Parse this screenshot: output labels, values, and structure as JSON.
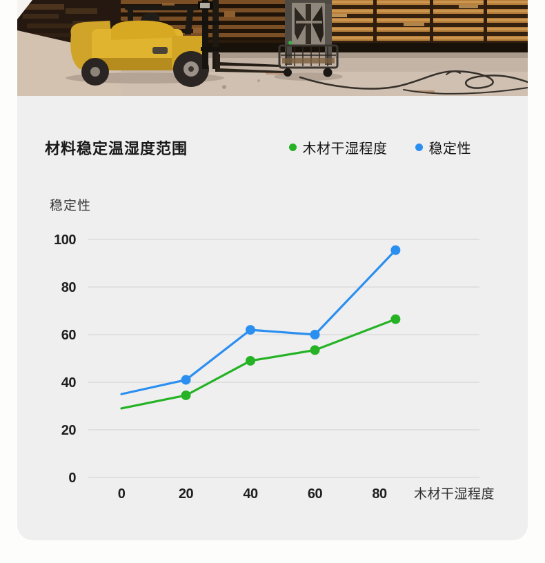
{
  "photo": {
    "description": "warehouse interior with a yellow forklift, a metal fan cart and tall stacks of wooden pallets, cables lying on the concrete floor",
    "forklift_color": "#d9ab25",
    "pallet_color": "#b9813c"
  },
  "header": {
    "title": "材料稳定温湿度范围"
  },
  "legend": {
    "items": [
      {
        "label": "木材干湿程度",
        "color": "#25b325"
      },
      {
        "label": "稳定性",
        "color": "#2b8ff0"
      }
    ]
  },
  "chart_data": {
    "type": "line",
    "title": "材料稳定温湿度范围",
    "y_axis_label": "稳定性",
    "x_axis_label": "木材干湿程度",
    "x_ticks": [
      0,
      20,
      40,
      60,
      80
    ],
    "y_ticks": [
      0,
      20,
      40,
      60,
      80,
      100
    ],
    "xlim": [
      0,
      110
    ],
    "ylim": [
      0,
      100
    ],
    "grid": "horizontal",
    "legend_position": "top-right",
    "markers": "dots on every point except the first",
    "series": [
      {
        "name": "木材干湿程度",
        "color": "#25b325",
        "x": [
          0,
          20,
          40,
          60,
          85
        ],
        "values": [
          29,
          34.5,
          49,
          53.5,
          66.5
        ]
      },
      {
        "name": "稳定性",
        "color": "#2b8ff0",
        "x": [
          0,
          20,
          40,
          60,
          85
        ],
        "values": [
          35,
          41,
          62,
          60,
          95.5
        ]
      }
    ],
    "colors": {
      "grid_line": "#d7d7d7",
      "tick_text": "#1e1e1e",
      "card_background": "#efeff0"
    }
  }
}
